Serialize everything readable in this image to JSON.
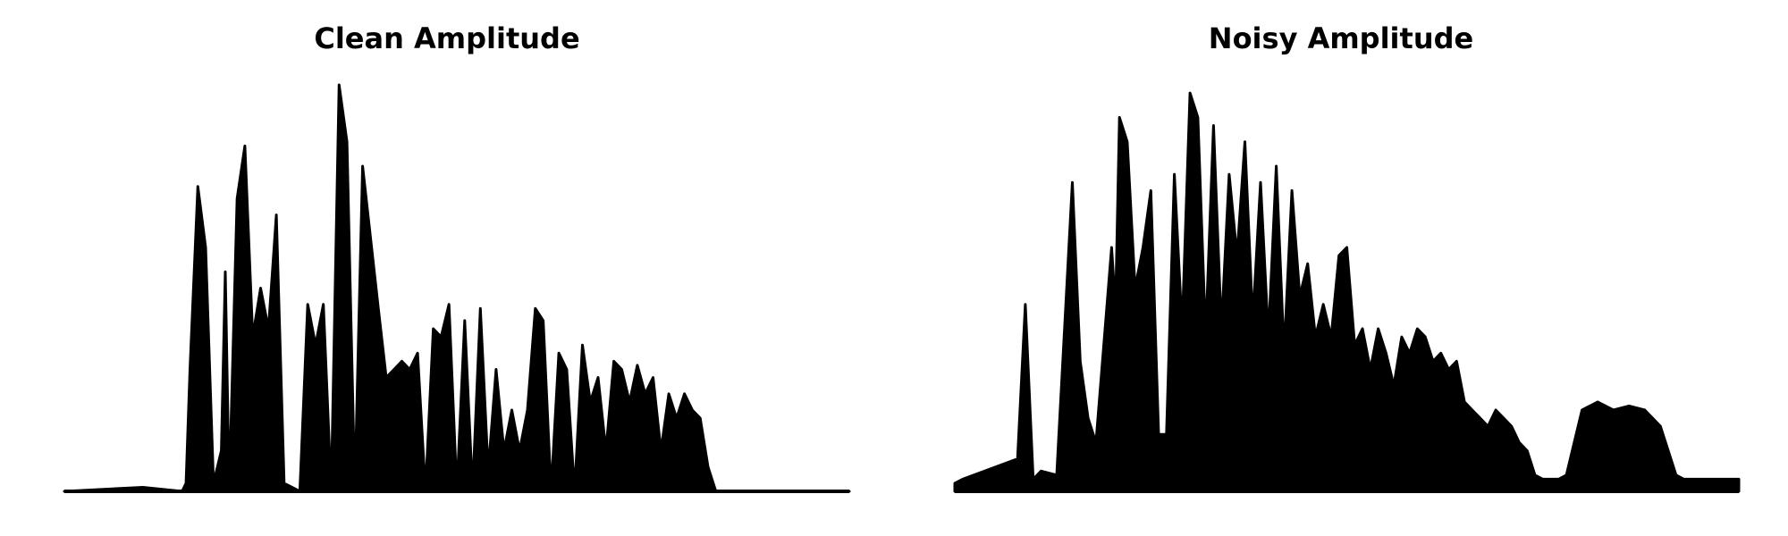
{
  "colors": {
    "waveform": "#000000",
    "background": "#ffffff"
  },
  "chart_data": [
    {
      "type": "area",
      "title": "Clean Amplitude",
      "xlabel": "",
      "ylabel": "",
      "axes": "off",
      "grid": false,
      "x": [
        0,
        0.1,
        0.15,
        0.155,
        0.16,
        0.17,
        0.18,
        0.19,
        0.2,
        0.205,
        0.21,
        0.22,
        0.23,
        0.24,
        0.25,
        0.26,
        0.27,
        0.28,
        0.3,
        0.31,
        0.32,
        0.33,
        0.34,
        0.35,
        0.36,
        0.37,
        0.38,
        0.4,
        0.41,
        0.42,
        0.43,
        0.44,
        0.45,
        0.46,
        0.47,
        0.48,
        0.49,
        0.5,
        0.51,
        0.52,
        0.53,
        0.54,
        0.55,
        0.56,
        0.57,
        0.58,
        0.59,
        0.6,
        0.61,
        0.62,
        0.63,
        0.64,
        0.65,
        0.66,
        0.67,
        0.68,
        0.69,
        0.7,
        0.71,
        0.72,
        0.73,
        0.74,
        0.75,
        0.76,
        0.77,
        0.78,
        0.79,
        0.8,
        0.81,
        0.82,
        0.83,
        0.84,
        0.85,
        0.86,
        0.87,
        0.88,
        0.9,
        1.0
      ],
      "y": [
        0.0,
        0.01,
        0.0,
        0.02,
        0.3,
        0.75,
        0.6,
        0.02,
        0.1,
        0.54,
        0.0,
        0.72,
        0.85,
        0.38,
        0.5,
        0.4,
        0.68,
        0.02,
        0.0,
        0.46,
        0.36,
        0.46,
        0.0,
        1.0,
        0.86,
        0.0,
        0.8,
        0.45,
        0.28,
        0.3,
        0.32,
        0.3,
        0.34,
        0.0,
        0.4,
        0.38,
        0.46,
        0.0,
        0.42,
        0.0,
        0.45,
        0.05,
        0.3,
        0.1,
        0.2,
        0.1,
        0.2,
        0.45,
        0.42,
        0.0,
        0.34,
        0.3,
        0.0,
        0.36,
        0.22,
        0.28,
        0.1,
        0.32,
        0.3,
        0.22,
        0.31,
        0.24,
        0.28,
        0.1,
        0.24,
        0.18,
        0.24,
        0.2,
        0.18,
        0.06,
        0.0,
        0.0,
        0.0,
        0.0,
        0.0,
        0.0,
        0.0,
        0.0
      ]
    },
    {
      "type": "area",
      "title": "Noisy Amplitude",
      "xlabel": "",
      "ylabel": "",
      "axes": "off",
      "grid": false,
      "x": [
        0,
        0.01,
        0.08,
        0.09,
        0.1,
        0.11,
        0.13,
        0.15,
        0.16,
        0.17,
        0.18,
        0.2,
        0.205,
        0.21,
        0.22,
        0.23,
        0.24,
        0.25,
        0.26,
        0.27,
        0.28,
        0.29,
        0.3,
        0.31,
        0.32,
        0.33,
        0.34,
        0.35,
        0.36,
        0.37,
        0.38,
        0.39,
        0.4,
        0.41,
        0.42,
        0.43,
        0.44,
        0.45,
        0.46,
        0.47,
        0.48,
        0.49,
        0.5,
        0.51,
        0.52,
        0.53,
        0.54,
        0.55,
        0.56,
        0.57,
        0.58,
        0.59,
        0.6,
        0.61,
        0.62,
        0.63,
        0.64,
        0.65,
        0.66,
        0.67,
        0.68,
        0.69,
        0.7,
        0.71,
        0.72,
        0.73,
        0.74,
        0.75,
        0.76,
        0.77,
        0.78,
        0.8,
        0.82,
        0.84,
        0.86,
        0.88,
        0.9,
        0.92,
        0.93,
        0.95,
        1.0
      ],
      "y": [
        0.02,
        0.03,
        0.08,
        0.46,
        0.03,
        0.05,
        0.04,
        0.76,
        0.32,
        0.18,
        0.12,
        0.6,
        0.45,
        0.92,
        0.86,
        0.5,
        0.6,
        0.74,
        0.14,
        0.14,
        0.78,
        0.4,
        0.98,
        0.92,
        0.38,
        0.9,
        0.4,
        0.78,
        0.58,
        0.86,
        0.42,
        0.76,
        0.38,
        0.8,
        0.34,
        0.74,
        0.48,
        0.56,
        0.38,
        0.46,
        0.38,
        0.58,
        0.6,
        0.36,
        0.4,
        0.3,
        0.4,
        0.34,
        0.26,
        0.38,
        0.34,
        0.4,
        0.38,
        0.32,
        0.34,
        0.3,
        0.32,
        0.22,
        0.2,
        0.18,
        0.16,
        0.2,
        0.18,
        0.16,
        0.12,
        0.1,
        0.04,
        0.03,
        0.03,
        0.03,
        0.04,
        0.2,
        0.22,
        0.2,
        0.21,
        0.2,
        0.16,
        0.04,
        0.03,
        0.03,
        0.03
      ]
    }
  ]
}
